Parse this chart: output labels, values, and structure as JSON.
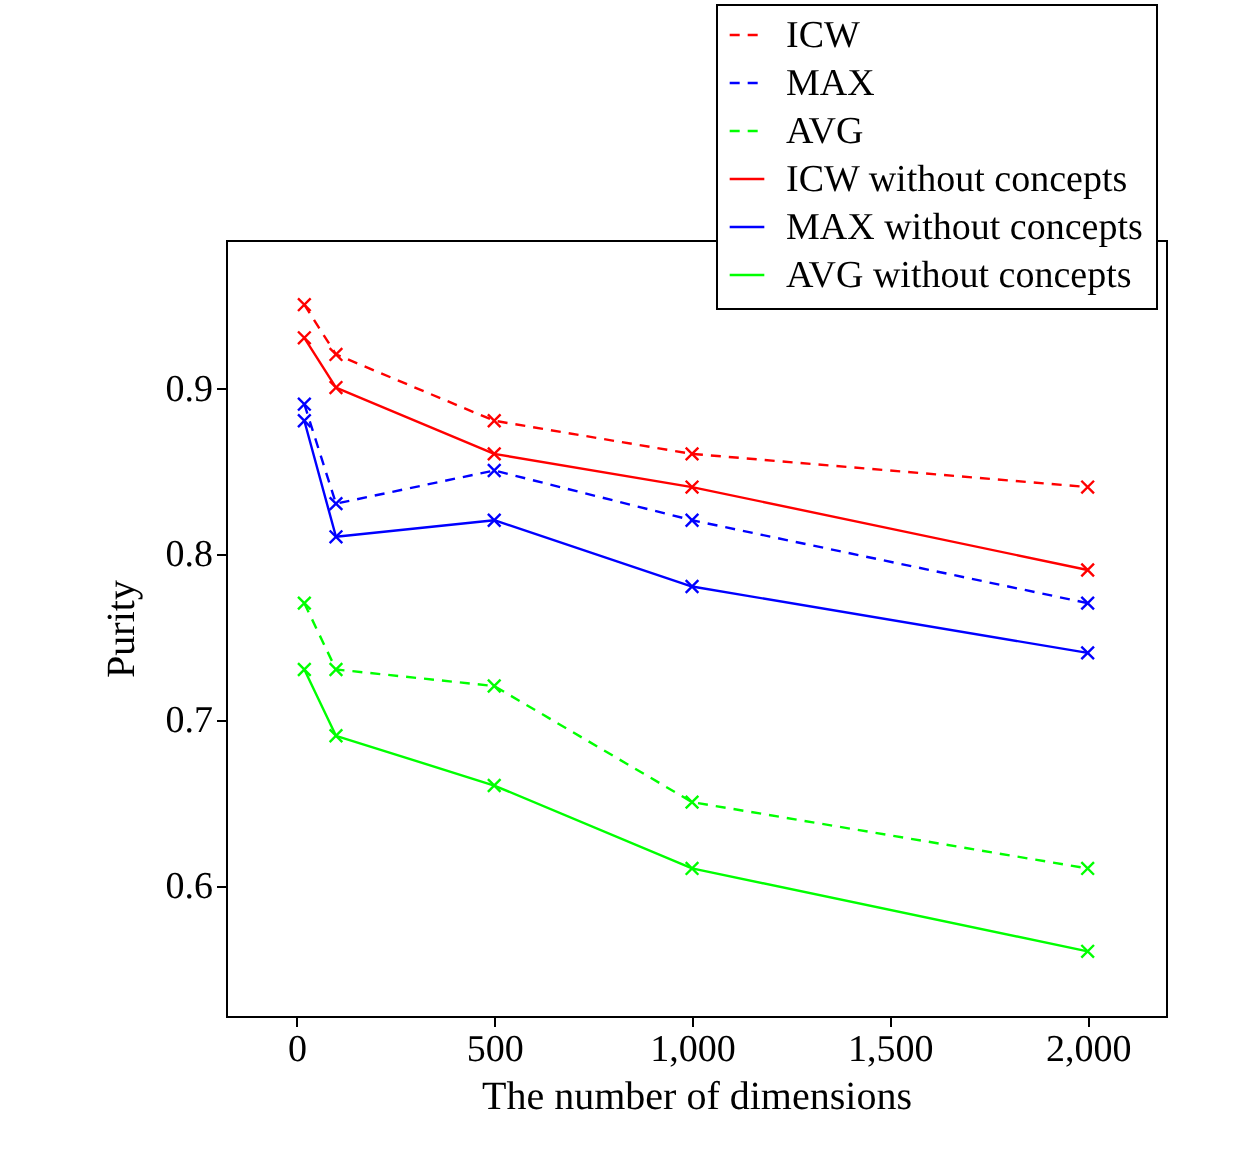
{
  "chart_data": {
    "type": "line",
    "xlabel": "The number of dimensions",
    "ylabel": "Purity",
    "x": [
      20,
      100,
      500,
      1000,
      2000
    ],
    "xlim": [
      -178,
      2198
    ],
    "xticks": [
      0,
      500,
      {
        "value": 1000,
        "label": "1,000"
      },
      {
        "value": 1500,
        "label": "1,500"
      },
      {
        "value": 2000,
        "label": "2,000"
      }
    ],
    "ylim": [
      0.521,
      0.989
    ],
    "yticks": [
      0.6,
      0.7,
      0.8,
      0.9
    ],
    "marker": "cross",
    "legend": "top right",
    "grid": false,
    "series": [
      {
        "name": "ICW",
        "color": "#ff0000",
        "line_style": "dashed",
        "values": [
          0.95,
          0.92,
          0.88,
          0.86,
          0.84
        ]
      },
      {
        "name": "MAX",
        "color": "#0000ff",
        "line_style": "dashed",
        "values": [
          0.89,
          0.83,
          0.85,
          0.82,
          0.77
        ]
      },
      {
        "name": "AVG",
        "color": "#00ff00",
        "line_style": "dashed",
        "values": [
          0.77,
          0.73,
          0.72,
          0.65,
          0.61
        ]
      },
      {
        "name": "ICW without concepts",
        "color": "#ff0000",
        "line_style": "solid",
        "values": [
          0.93,
          0.9,
          0.86,
          0.84,
          0.79
        ]
      },
      {
        "name": "MAX without concepts",
        "color": "#0000ff",
        "line_style": "solid",
        "values": [
          0.88,
          0.81,
          0.82,
          0.78,
          0.74
        ]
      },
      {
        "name": "AVG without concepts",
        "color": "#00ff00",
        "line_style": "solid",
        "values": [
          0.73,
          0.69,
          0.66,
          0.61,
          0.56
        ]
      }
    ]
  }
}
